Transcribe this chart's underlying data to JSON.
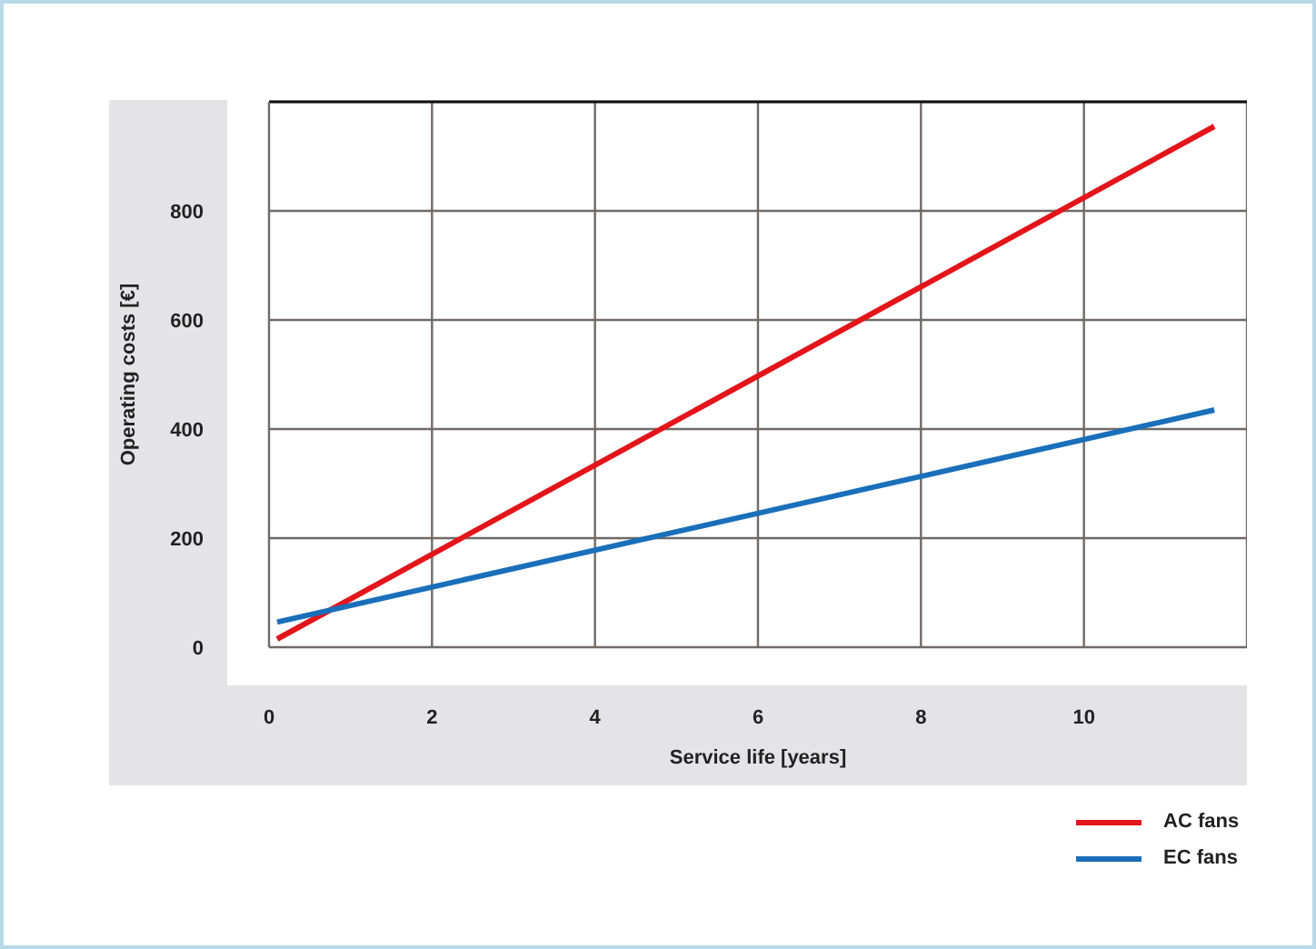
{
  "chart_data": {
    "type": "line",
    "xlabel": "Service life [years]",
    "ylabel": "Operating costs [€]",
    "x": [
      0.1,
      11.6
    ],
    "xlim": [
      0,
      12
    ],
    "xticks": [
      0,
      2,
      4,
      6,
      8,
      10
    ],
    "ylim": [
      0,
      1000
    ],
    "yticks": [
      0,
      200,
      400,
      600,
      800
    ],
    "grid": true,
    "legend": "bottom right",
    "line_style": "solid",
    "marker": "none",
    "series": [
      {
        "name": "AC fans",
        "color": "#e3151a",
        "values": [
          15,
          955
        ]
      },
      {
        "name": "EC fans",
        "color": "#1a6fba",
        "values": [
          46,
          435
        ]
      }
    ]
  }
}
